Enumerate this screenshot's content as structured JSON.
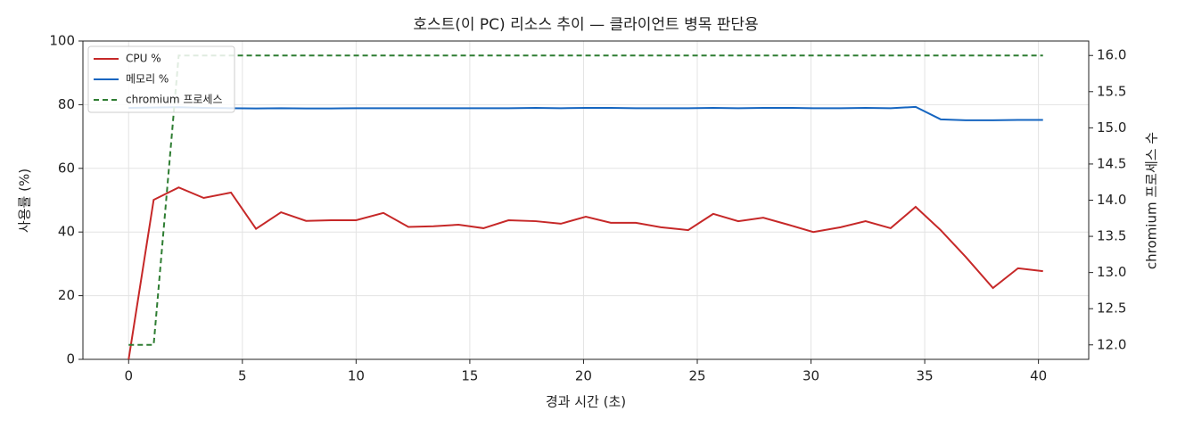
{
  "chart_data": {
    "type": "line",
    "title": "호스트(이 PC) 리소스 추이 — 클라이언트 병목 판단용",
    "x_label": "경과 시간 (초)",
    "y_label": "사용률 (%)",
    "y2_label": "chromium 프로세스 수",
    "x": [
      0,
      1.1,
      2.2,
      3.3,
      4.5,
      5.6,
      6.7,
      7.8,
      8.9,
      10.0,
      11.2,
      12.3,
      13.4,
      14.5,
      15.6,
      16.7,
      17.9,
      19.0,
      20.1,
      21.2,
      22.3,
      23.4,
      24.6,
      25.7,
      26.8,
      27.9,
      29.0,
      30.1,
      31.3,
      32.4,
      33.5,
      34.6,
      35.7,
      36.8,
      38.0,
      39.1,
      40.2
    ],
    "series": [
      {
        "name": "CPU %",
        "color": "#c62828",
        "dash": false,
        "values": [
          0,
          50.1,
          54,
          50.7,
          52.4,
          41,
          46.2,
          43.5,
          43.7,
          43.7,
          46,
          41.6,
          41.8,
          42.3,
          41.2,
          43.7,
          43.4,
          42.6,
          44.8,
          42.9,
          42.9,
          41.5,
          40.6,
          45.7,
          43.4,
          44.5,
          42.3,
          40,
          41.5,
          43.4,
          41.2,
          47.9,
          40.6,
          32.2,
          22.4,
          28.6,
          27.7
        ]
      },
      {
        "name": "메모리 %",
        "color": "#1565c0",
        "dash": false,
        "values": [
          79,
          79.1,
          79.2,
          79,
          78.9,
          78.8,
          78.9,
          78.8,
          78.8,
          78.9,
          78.9,
          78.9,
          78.9,
          78.9,
          78.9,
          78.9,
          79,
          78.9,
          79,
          79,
          78.9,
          78.9,
          78.9,
          79,
          78.9,
          79,
          79,
          78.9,
          78.9,
          79,
          78.9,
          79.3,
          75.4,
          75.1,
          75.1,
          75.2,
          75.2
        ]
      },
      {
        "name": "chromium 프로세스",
        "color": "#2e7d32",
        "dash": true,
        "axis": "y2",
        "values": [
          12,
          12,
          16,
          16,
          16,
          16,
          16,
          16,
          16,
          16,
          16,
          16,
          16,
          16,
          16,
          16,
          16,
          16,
          16,
          16,
          16,
          16,
          16,
          16,
          16,
          16,
          16,
          16,
          16,
          16,
          16,
          16,
          16,
          16,
          16,
          16,
          16
        ]
      }
    ],
    "xlim": [
      -2.01,
      42.21
    ],
    "xticks": [
      0,
      5,
      10,
      15,
      20,
      25,
      30,
      35,
      40
    ],
    "ylim": [
      0,
      100
    ],
    "yticks": [
      0,
      20,
      40,
      60,
      80,
      100
    ],
    "y2lim": [
      11.8,
      16.2
    ],
    "y2ticks": [
      {
        "value": 12,
        "label": "12.0"
      },
      12.5,
      {
        "value": 13,
        "label": "13.0"
      },
      13.5,
      {
        "value": 14,
        "label": "14.0"
      },
      14.5,
      {
        "value": 15,
        "label": "15.0"
      },
      15.5,
      {
        "value": 16,
        "label": "16.0"
      }
    ],
    "grid": true,
    "legend": "upper-left"
  }
}
